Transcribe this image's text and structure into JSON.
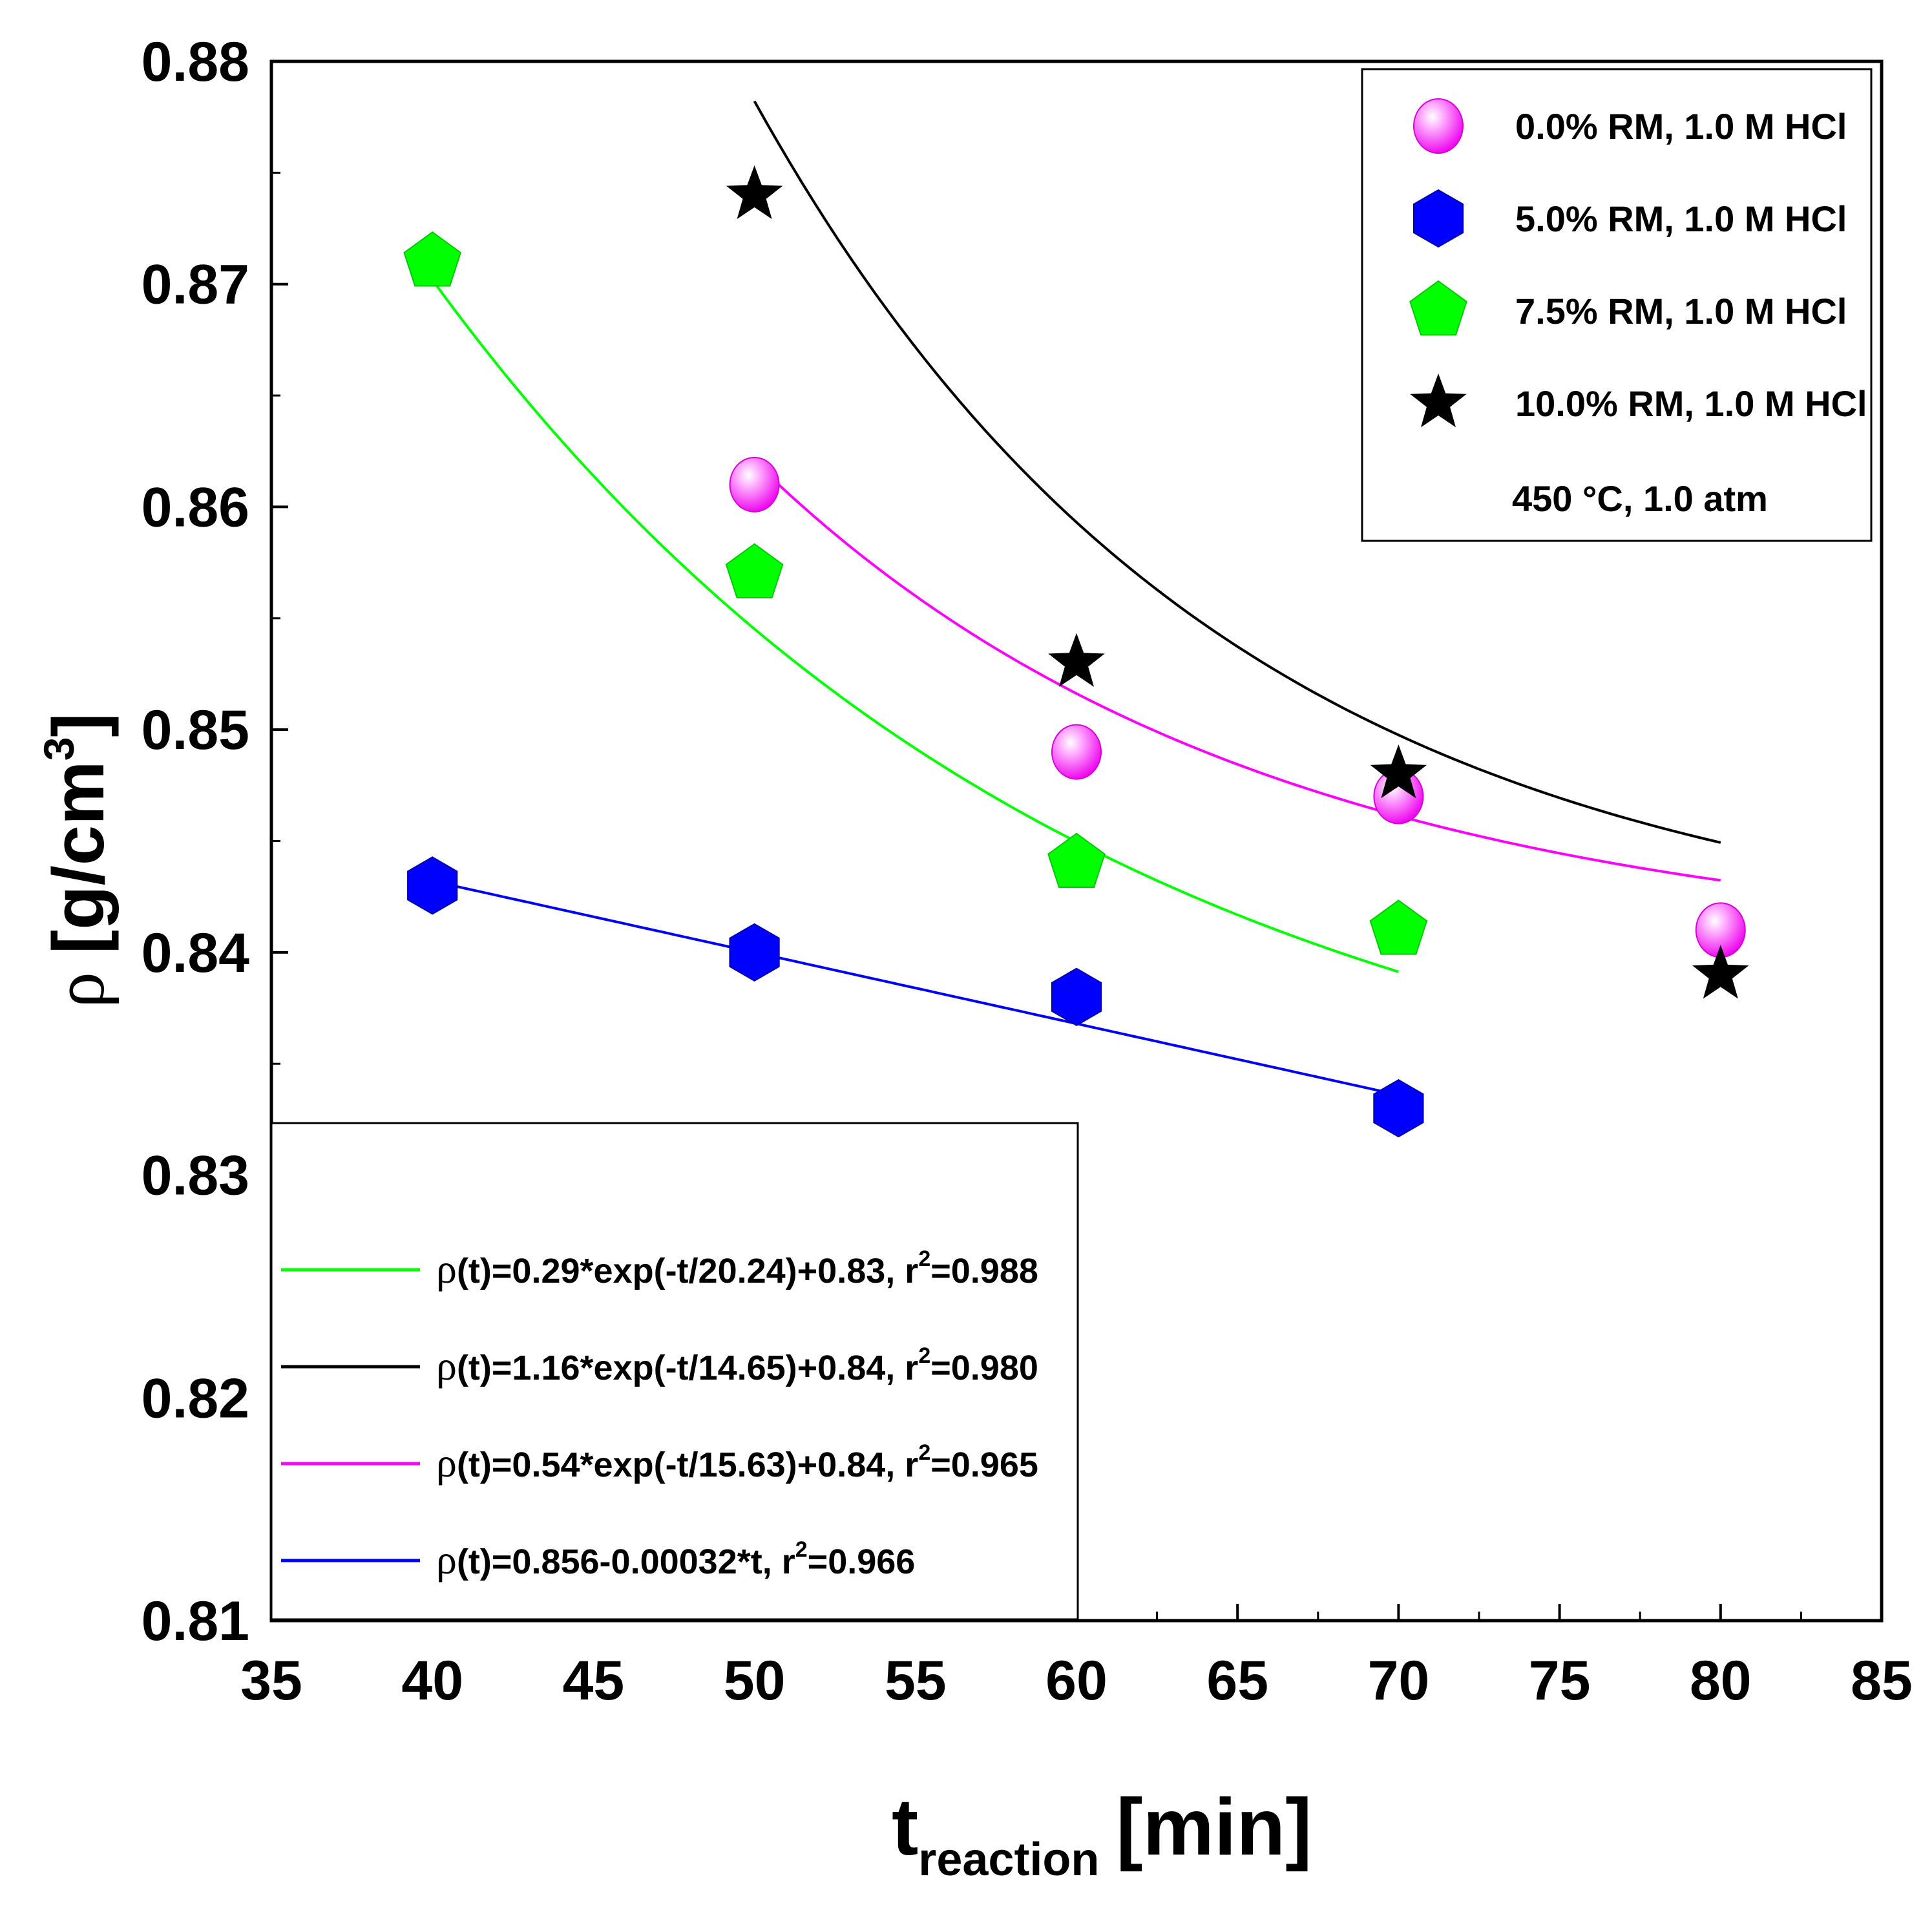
{
  "chart_data": {
    "type": "scatter",
    "title": "",
    "xlim": [
      35,
      85
    ],
    "ylim": [
      0.81,
      0.88
    ],
    "x_ticks": [
      "35",
      "40",
      "45",
      "50",
      "55",
      "60",
      "65",
      "70",
      "75",
      "80",
      "85"
    ],
    "y_ticks": [
      "0.81",
      "0.82",
      "0.83",
      "0.84",
      "0.85",
      "0.86",
      "0.87",
      "0.88"
    ],
    "xlabel": {
      "main": "t",
      "sub": "reaction",
      "unit": "[min]"
    },
    "ylabel": {
      "symbol": "ρ",
      "unit": "[g/cm",
      "sup": "3",
      "close": "]"
    },
    "grid": false,
    "series": [
      {
        "name": "0.0% RM, 1.0 M HCl",
        "marker": "sphere",
        "color": "#ff00ff",
        "points": [
          [
            50,
            0.861
          ],
          [
            60,
            0.849
          ],
          [
            70,
            0.847
          ],
          [
            80,
            0.841
          ]
        ]
      },
      {
        "name": "5.0% RM, 1.0 M HCl",
        "marker": "hexagon",
        "color": "#0000ff",
        "points": [
          [
            40,
            0.843
          ],
          [
            50,
            0.84
          ],
          [
            60,
            0.838
          ],
          [
            70,
            0.833
          ]
        ]
      },
      {
        "name": "7.5% RM, 1.0 M HCl",
        "marker": "pentagon",
        "color": "#00ff00",
        "points": [
          [
            40,
            0.871
          ],
          [
            50,
            0.857
          ],
          [
            60,
            0.844
          ],
          [
            70,
            0.841
          ]
        ]
      },
      {
        "name": "10.0% RM, 1.0 M HCl",
        "marker": "star",
        "color": "#000000",
        "points": [
          [
            50,
            0.874
          ],
          [
            60,
            0.853
          ],
          [
            70,
            0.848
          ],
          [
            80,
            0.839
          ]
        ]
      }
    ],
    "conditions_note": "450 °C, 1.0 atm",
    "fits": [
      {
        "color": "#00ff00",
        "model": "exp",
        "A": 0.29,
        "tau": 20.24,
        "c": 0.83,
        "x_range": [
          40,
          70
        ],
        "label_pre": "(t)=0.29*exp(-t/20.24)+0.83, r",
        "label_sup": "2",
        "label_post": "=0.988"
      },
      {
        "color": "#000000",
        "model": "exp",
        "A": 1.16,
        "tau": 14.65,
        "c": 0.84,
        "x_range": [
          50,
          80
        ],
        "label_pre": "(t)=1.16*exp(-t/14.65)+0.84, r",
        "label_sup": "2",
        "label_post": "=0.980"
      },
      {
        "color": "#ff00ff",
        "model": "exp",
        "A": 0.54,
        "tau": 15.63,
        "c": 0.84,
        "x_range": [
          50,
          80
        ],
        "label_pre": "(t)=0.54*exp(-t/15.63)+0.84, r",
        "label_sup": "2",
        "label_post": "=0.965"
      },
      {
        "color": "#0000ff",
        "model": "linear",
        "a": 0.856,
        "b": -0.00032,
        "x_range": [
          40,
          70
        ],
        "label_pre": "(t)=0.856-0.00032*t, r",
        "label_sup": "2",
        "label_post": "=0.966"
      }
    ],
    "fit_symbol": "ρ"
  }
}
